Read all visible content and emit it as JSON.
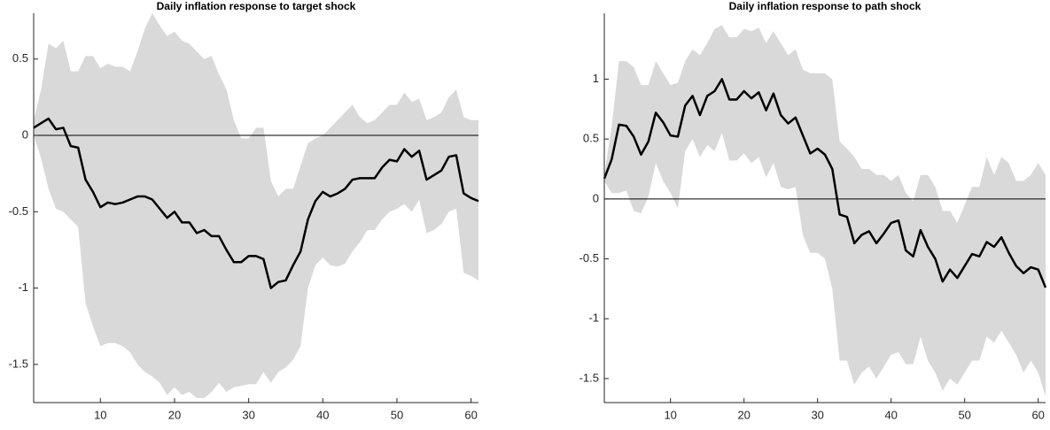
{
  "chart_data": [
    {
      "type": "line",
      "title": "Daily inflation response to target shock",
      "x": [
        1,
        2,
        3,
        4,
        5,
        6,
        7,
        8,
        9,
        10,
        11,
        12,
        13,
        14,
        15,
        16,
        17,
        18,
        19,
        20,
        21,
        22,
        23,
        24,
        25,
        26,
        27,
        28,
        29,
        30,
        31,
        32,
        33,
        34,
        35,
        36,
        37,
        38,
        39,
        40,
        41,
        42,
        43,
        44,
        45,
        46,
        47,
        48,
        49,
        50,
        51,
        52,
        53,
        54,
        55,
        56,
        57,
        58,
        59,
        60,
        61
      ],
      "values": [
        0.05,
        0.08,
        0.11,
        0.04,
        0.05,
        -0.07,
        -0.08,
        -0.29,
        -0.37,
        -0.47,
        -0.44,
        -0.45,
        -0.44,
        -0.42,
        -0.4,
        -0.4,
        -0.42,
        -0.48,
        -0.54,
        -0.5,
        -0.57,
        -0.57,
        -0.64,
        -0.62,
        -0.66,
        -0.66,
        -0.75,
        -0.83,
        -0.83,
        -0.79,
        -0.79,
        -0.81,
        -1.0,
        -0.96,
        -0.95,
        -0.85,
        -0.76,
        -0.55,
        -0.43,
        -0.37,
        -0.4,
        -0.38,
        -0.35,
        -0.29,
        -0.28,
        -0.28,
        -0.28,
        -0.21,
        -0.16,
        -0.17,
        -0.09,
        -0.14,
        -0.1,
        -0.29,
        -0.26,
        -0.23,
        -0.14,
        -0.13,
        -0.38,
        -0.41,
        -0.43
      ],
      "upper": [
        0.1,
        0.3,
        0.6,
        0.57,
        0.62,
        0.42,
        0.42,
        0.52,
        0.52,
        0.44,
        0.47,
        0.45,
        0.45,
        0.42,
        0.55,
        0.7,
        0.8,
        0.72,
        0.65,
        0.68,
        0.62,
        0.6,
        0.55,
        0.5,
        0.52,
        0.4,
        0.3,
        0.1,
        -0.02,
        -0.02,
        0.05,
        0.05,
        -0.3,
        -0.4,
        -0.35,
        -0.35,
        -0.2,
        -0.05,
        -0.02,
        0.0,
        0.05,
        0.1,
        0.15,
        0.2,
        0.12,
        0.08,
        0.1,
        0.15,
        0.2,
        0.2,
        0.28,
        0.22,
        0.24,
        0.1,
        0.12,
        0.15,
        0.25,
        0.3,
        0.12,
        0.1,
        0.1
      ],
      "lower": [
        0.0,
        -0.15,
        -0.35,
        -0.48,
        -0.5,
        -0.55,
        -0.6,
        -1.1,
        -1.25,
        -1.38,
        -1.36,
        -1.36,
        -1.38,
        -1.42,
        -1.5,
        -1.55,
        -1.58,
        -1.62,
        -1.7,
        -1.65,
        -1.7,
        -1.68,
        -1.72,
        -1.72,
        -1.68,
        -1.62,
        -1.68,
        -1.65,
        -1.64,
        -1.63,
        -1.63,
        -1.55,
        -1.62,
        -1.55,
        -1.52,
        -1.47,
        -1.38,
        -1.0,
        -0.85,
        -0.8,
        -0.85,
        -0.86,
        -0.84,
        -0.76,
        -0.7,
        -0.62,
        -0.62,
        -0.55,
        -0.5,
        -0.48,
        -0.45,
        -0.5,
        -0.42,
        -0.64,
        -0.62,
        -0.58,
        -0.5,
        -0.48,
        -0.9,
        -0.92,
        -0.95
      ],
      "color": "#000000",
      "band_color": "#d9d9d9",
      "reference_line": 0,
      "xlim": [
        1,
        61
      ],
      "xticks": [
        10,
        20,
        30,
        40,
        50,
        60
      ],
      "ylim": [
        -1.75,
        0.8
      ],
      "yticks": [
        -1.5,
        -1,
        -0.5,
        0,
        0.5
      ]
    },
    {
      "type": "line",
      "title": "Daily inflation response to path shock",
      "x": [
        1,
        2,
        3,
        4,
        5,
        6,
        7,
        8,
        9,
        10,
        11,
        12,
        13,
        14,
        15,
        16,
        17,
        18,
        19,
        20,
        21,
        22,
        23,
        24,
        25,
        26,
        27,
        28,
        29,
        30,
        31,
        32,
        33,
        34,
        35,
        36,
        37,
        38,
        39,
        40,
        41,
        42,
        43,
        44,
        45,
        46,
        47,
        48,
        49,
        50,
        51,
        52,
        53,
        54,
        55,
        56,
        57,
        58,
        59,
        60,
        61
      ],
      "values": [
        0.17,
        0.33,
        0.62,
        0.61,
        0.52,
        0.37,
        0.48,
        0.72,
        0.64,
        0.53,
        0.52,
        0.78,
        0.86,
        0.7,
        0.86,
        0.9,
        1.0,
        0.83,
        0.83,
        0.9,
        0.84,
        0.89,
        0.74,
        0.88,
        0.7,
        0.63,
        0.68,
        0.53,
        0.38,
        0.42,
        0.37,
        0.25,
        -0.13,
        -0.15,
        -0.37,
        -0.3,
        -0.27,
        -0.37,
        -0.29,
        -0.2,
        -0.18,
        -0.43,
        -0.48,
        -0.26,
        -0.4,
        -0.5,
        -0.69,
        -0.59,
        -0.66,
        -0.56,
        -0.46,
        -0.48,
        -0.36,
        -0.4,
        -0.32,
        -0.45,
        -0.56,
        -0.62,
        -0.57,
        -0.59,
        -0.74
      ],
      "upper": [
        0.2,
        0.6,
        1.15,
        1.15,
        1.1,
        0.95,
        0.95,
        1.15,
        1.05,
        0.95,
        0.97,
        1.15,
        1.25,
        1.2,
        1.3,
        1.42,
        1.45,
        1.35,
        1.35,
        1.42,
        1.4,
        1.43,
        1.3,
        1.4,
        1.3,
        1.2,
        1.25,
        1.08,
        1.05,
        1.05,
        1.05,
        1.0,
        0.48,
        0.42,
        0.35,
        0.25,
        0.25,
        0.2,
        0.2,
        0.15,
        0.2,
        0.05,
        -0.02,
        0.2,
        0.2,
        0.1,
        -0.1,
        -0.1,
        -0.2,
        -0.05,
        0.1,
        0.1,
        0.35,
        0.2,
        0.35,
        0.3,
        0.15,
        0.15,
        0.2,
        0.3,
        0.2
      ],
      "lower": [
        0.15,
        0.05,
        0.05,
        0.07,
        -0.1,
        -0.12,
        0.02,
        0.3,
        0.15,
        0.05,
        -0.08,
        0.4,
        0.5,
        0.35,
        0.45,
        0.4,
        0.55,
        0.32,
        0.32,
        0.38,
        0.3,
        0.35,
        0.18,
        0.3,
        0.1,
        0.08,
        0.1,
        -0.3,
        -0.45,
        -0.45,
        -0.5,
        -0.75,
        -1.35,
        -1.35,
        -1.55,
        -1.45,
        -1.4,
        -1.5,
        -1.4,
        -1.3,
        -1.28,
        -1.38,
        -1.38,
        -1.15,
        -1.35,
        -1.45,
        -1.6,
        -1.5,
        -1.55,
        -1.45,
        -1.35,
        -1.35,
        -1.15,
        -1.2,
        -1.1,
        -1.2,
        -1.3,
        -1.45,
        -1.35,
        -1.45,
        -1.65
      ],
      "color": "#000000",
      "band_color": "#d9d9d9",
      "reference_line": 0,
      "xlim": [
        1,
        61
      ],
      "xticks": [
        10,
        20,
        30,
        40,
        50,
        60
      ],
      "ylim": [
        -1.7,
        1.55
      ],
      "yticks": [
        -1.5,
        -1,
        -0.5,
        0,
        0.5,
        1
      ]
    }
  ]
}
